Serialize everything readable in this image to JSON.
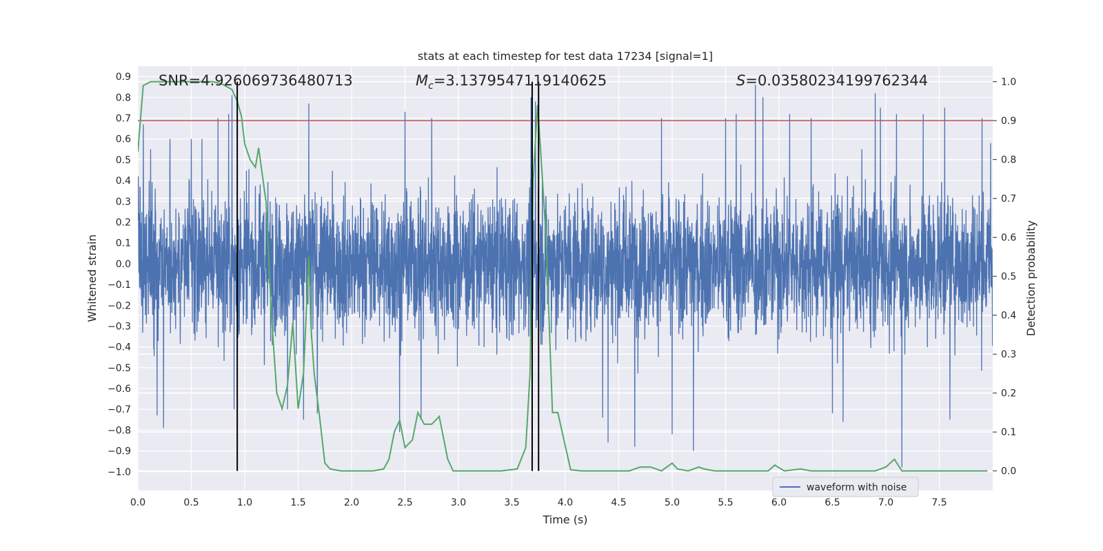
{
  "chart_data": {
    "type": "line",
    "title": "stats at each timestep for test data 17234 [signal=1]",
    "xlabel": "Time (s)",
    "ylabel_left": "Whitened strain",
    "ylabel_right": "Detection probability",
    "xlim": [
      0.0,
      8.0
    ],
    "ylim_left": [
      -1.09,
      0.95
    ],
    "ylim_right": [
      -0.05,
      1.04
    ],
    "x_ticks": [
      "0.0",
      "0.5",
      "1.0",
      "1.5",
      "2.0",
      "2.5",
      "3.0",
      "3.5",
      "4.0",
      "4.5",
      "5.0",
      "5.5",
      "6.0",
      "6.5",
      "7.0",
      "7.5"
    ],
    "y_ticks_left": [
      "0.9",
      "0.8",
      "0.7",
      "0.6",
      "0.5",
      "0.4",
      "0.3",
      "0.2",
      "0.1",
      "0.0",
      "−0.1",
      "−0.2",
      "−0.3",
      "−0.4",
      "−0.5",
      "−0.6",
      "−0.7",
      "−0.8",
      "−0.9",
      "−1.0"
    ],
    "y_ticks_right": [
      "1.0",
      "0.9",
      "0.8",
      "0.7",
      "0.6",
      "0.5",
      "0.4",
      "0.3",
      "0.2",
      "0.1",
      "0.0"
    ],
    "grid": true,
    "legend": {
      "position": "lower-right",
      "entries": [
        "waveform with noise"
      ]
    },
    "annotations": {
      "snr": "SNR=4.926069736480713",
      "mc_symbol": "M",
      "mc_sub": "c",
      "mc_value": "=3.1379547119140625",
      "s_symbol": "S",
      "s_value": "=0.03580234199762344"
    },
    "threshold": {
      "value": 0.9,
      "axis": "right",
      "color": "#c44e52"
    },
    "vertical_lines": [
      0.93,
      3.69,
      3.75
    ],
    "series": [
      {
        "name": "waveform with noise",
        "axis": "left",
        "color": "#4c72b0",
        "style": "noise",
        "sample_rate": 512,
        "amplitude_envelope": 0.3,
        "spikes": [
          [
            0.02,
            0.37
          ],
          [
            0.05,
            0.67
          ],
          [
            0.12,
            0.55
          ],
          [
            0.18,
            -0.73
          ],
          [
            0.24,
            -0.79
          ],
          [
            0.3,
            0.6
          ],
          [
            0.5,
            0.6
          ],
          [
            0.6,
            0.6
          ],
          [
            0.75,
            0.7
          ],
          [
            0.85,
            0.72
          ],
          [
            0.88,
            0.81
          ],
          [
            0.9,
            -0.7
          ],
          [
            1.4,
            -0.7
          ],
          [
            1.55,
            -0.75
          ],
          [
            1.6,
            0.77
          ],
          [
            1.68,
            -0.72
          ],
          [
            2.45,
            -0.81
          ],
          [
            2.5,
            0.73
          ],
          [
            2.65,
            -0.75
          ],
          [
            2.75,
            0.7
          ],
          [
            3.68,
            0.8
          ],
          [
            3.72,
            0.78
          ],
          [
            4.35,
            -0.74
          ],
          [
            4.4,
            -0.86
          ],
          [
            4.65,
            -0.88
          ],
          [
            4.9,
            0.7
          ],
          [
            5.0,
            -0.82
          ],
          [
            5.2,
            -0.9
          ],
          [
            5.5,
            0.7
          ],
          [
            5.6,
            0.72
          ],
          [
            5.78,
            0.86
          ],
          [
            5.85,
            0.8
          ],
          [
            6.1,
            0.72
          ],
          [
            6.3,
            0.7
          ],
          [
            6.5,
            -0.72
          ],
          [
            6.6,
            -0.76
          ],
          [
            6.9,
            0.82
          ],
          [
            6.95,
            0.75
          ],
          [
            7.1,
            0.72
          ],
          [
            7.15,
            -0.98
          ],
          [
            7.35,
            0.72
          ],
          [
            7.55,
            0.75
          ],
          [
            7.6,
            -0.75
          ],
          [
            7.9,
            0.7
          ],
          [
            7.98,
            0.58
          ]
        ]
      },
      {
        "name": "",
        "axis": "right",
        "color": "#55a868",
        "style": "line",
        "points": [
          [
            0.0,
            0.82
          ],
          [
            0.05,
            0.99
          ],
          [
            0.12,
            1.0
          ],
          [
            0.3,
            1.0
          ],
          [
            0.5,
            1.0
          ],
          [
            0.7,
            1.0
          ],
          [
            0.78,
            0.995
          ],
          [
            0.88,
            0.98
          ],
          [
            0.93,
            0.95
          ],
          [
            0.97,
            0.91
          ],
          [
            1.0,
            0.84
          ],
          [
            1.05,
            0.8
          ],
          [
            1.1,
            0.78
          ],
          [
            1.13,
            0.83
          ],
          [
            1.2,
            0.69
          ],
          [
            1.25,
            0.4
          ],
          [
            1.3,
            0.2
          ],
          [
            1.35,
            0.16
          ],
          [
            1.4,
            0.22
          ],
          [
            1.45,
            0.38
          ],
          [
            1.5,
            0.16
          ],
          [
            1.55,
            0.25
          ],
          [
            1.6,
            0.55
          ],
          [
            1.62,
            0.37
          ],
          [
            1.65,
            0.25
          ],
          [
            1.7,
            0.14
          ],
          [
            1.75,
            0.02
          ],
          [
            1.8,
            0.005
          ],
          [
            1.9,
            0.0
          ],
          [
            2.0,
            0.0
          ],
          [
            2.2,
            0.0
          ],
          [
            2.3,
            0.005
          ],
          [
            2.35,
            0.03
          ],
          [
            2.4,
            0.1
          ],
          [
            2.45,
            0.13
          ],
          [
            2.5,
            0.06
          ],
          [
            2.57,
            0.08
          ],
          [
            2.62,
            0.15
          ],
          [
            2.68,
            0.12
          ],
          [
            2.75,
            0.12
          ],
          [
            2.82,
            0.14
          ],
          [
            2.9,
            0.03
          ],
          [
            2.95,
            0.0
          ],
          [
            3.2,
            0.0
          ],
          [
            3.4,
            0.0
          ],
          [
            3.55,
            0.005
          ],
          [
            3.63,
            0.06
          ],
          [
            3.67,
            0.25
          ],
          [
            3.7,
            0.75
          ],
          [
            3.74,
            0.94
          ],
          [
            3.77,
            0.82
          ],
          [
            3.82,
            0.6
          ],
          [
            3.88,
            0.15
          ],
          [
            3.93,
            0.15
          ],
          [
            4.05,
            0.003
          ],
          [
            4.15,
            0.0
          ],
          [
            4.3,
            0.0
          ],
          [
            4.6,
            0.0
          ],
          [
            4.7,
            0.01
          ],
          [
            4.8,
            0.01
          ],
          [
            4.9,
            0.0
          ],
          [
            5.0,
            0.02
          ],
          [
            5.05,
            0.005
          ],
          [
            5.15,
            0.0
          ],
          [
            5.25,
            0.01
          ],
          [
            5.3,
            0.005
          ],
          [
            5.4,
            0.0
          ],
          [
            5.8,
            0.0
          ],
          [
            5.9,
            0.0
          ],
          [
            5.96,
            0.015
          ],
          [
            6.05,
            0.0
          ],
          [
            6.2,
            0.005
          ],
          [
            6.3,
            0.0
          ],
          [
            6.9,
            0.0
          ],
          [
            7.0,
            0.01
          ],
          [
            7.08,
            0.03
          ],
          [
            7.15,
            0.0
          ],
          [
            7.3,
            0.0
          ],
          [
            7.5,
            0.0
          ],
          [
            7.7,
            0.0
          ],
          [
            7.85,
            0.0
          ],
          [
            7.95,
            0.0
          ]
        ]
      }
    ]
  }
}
